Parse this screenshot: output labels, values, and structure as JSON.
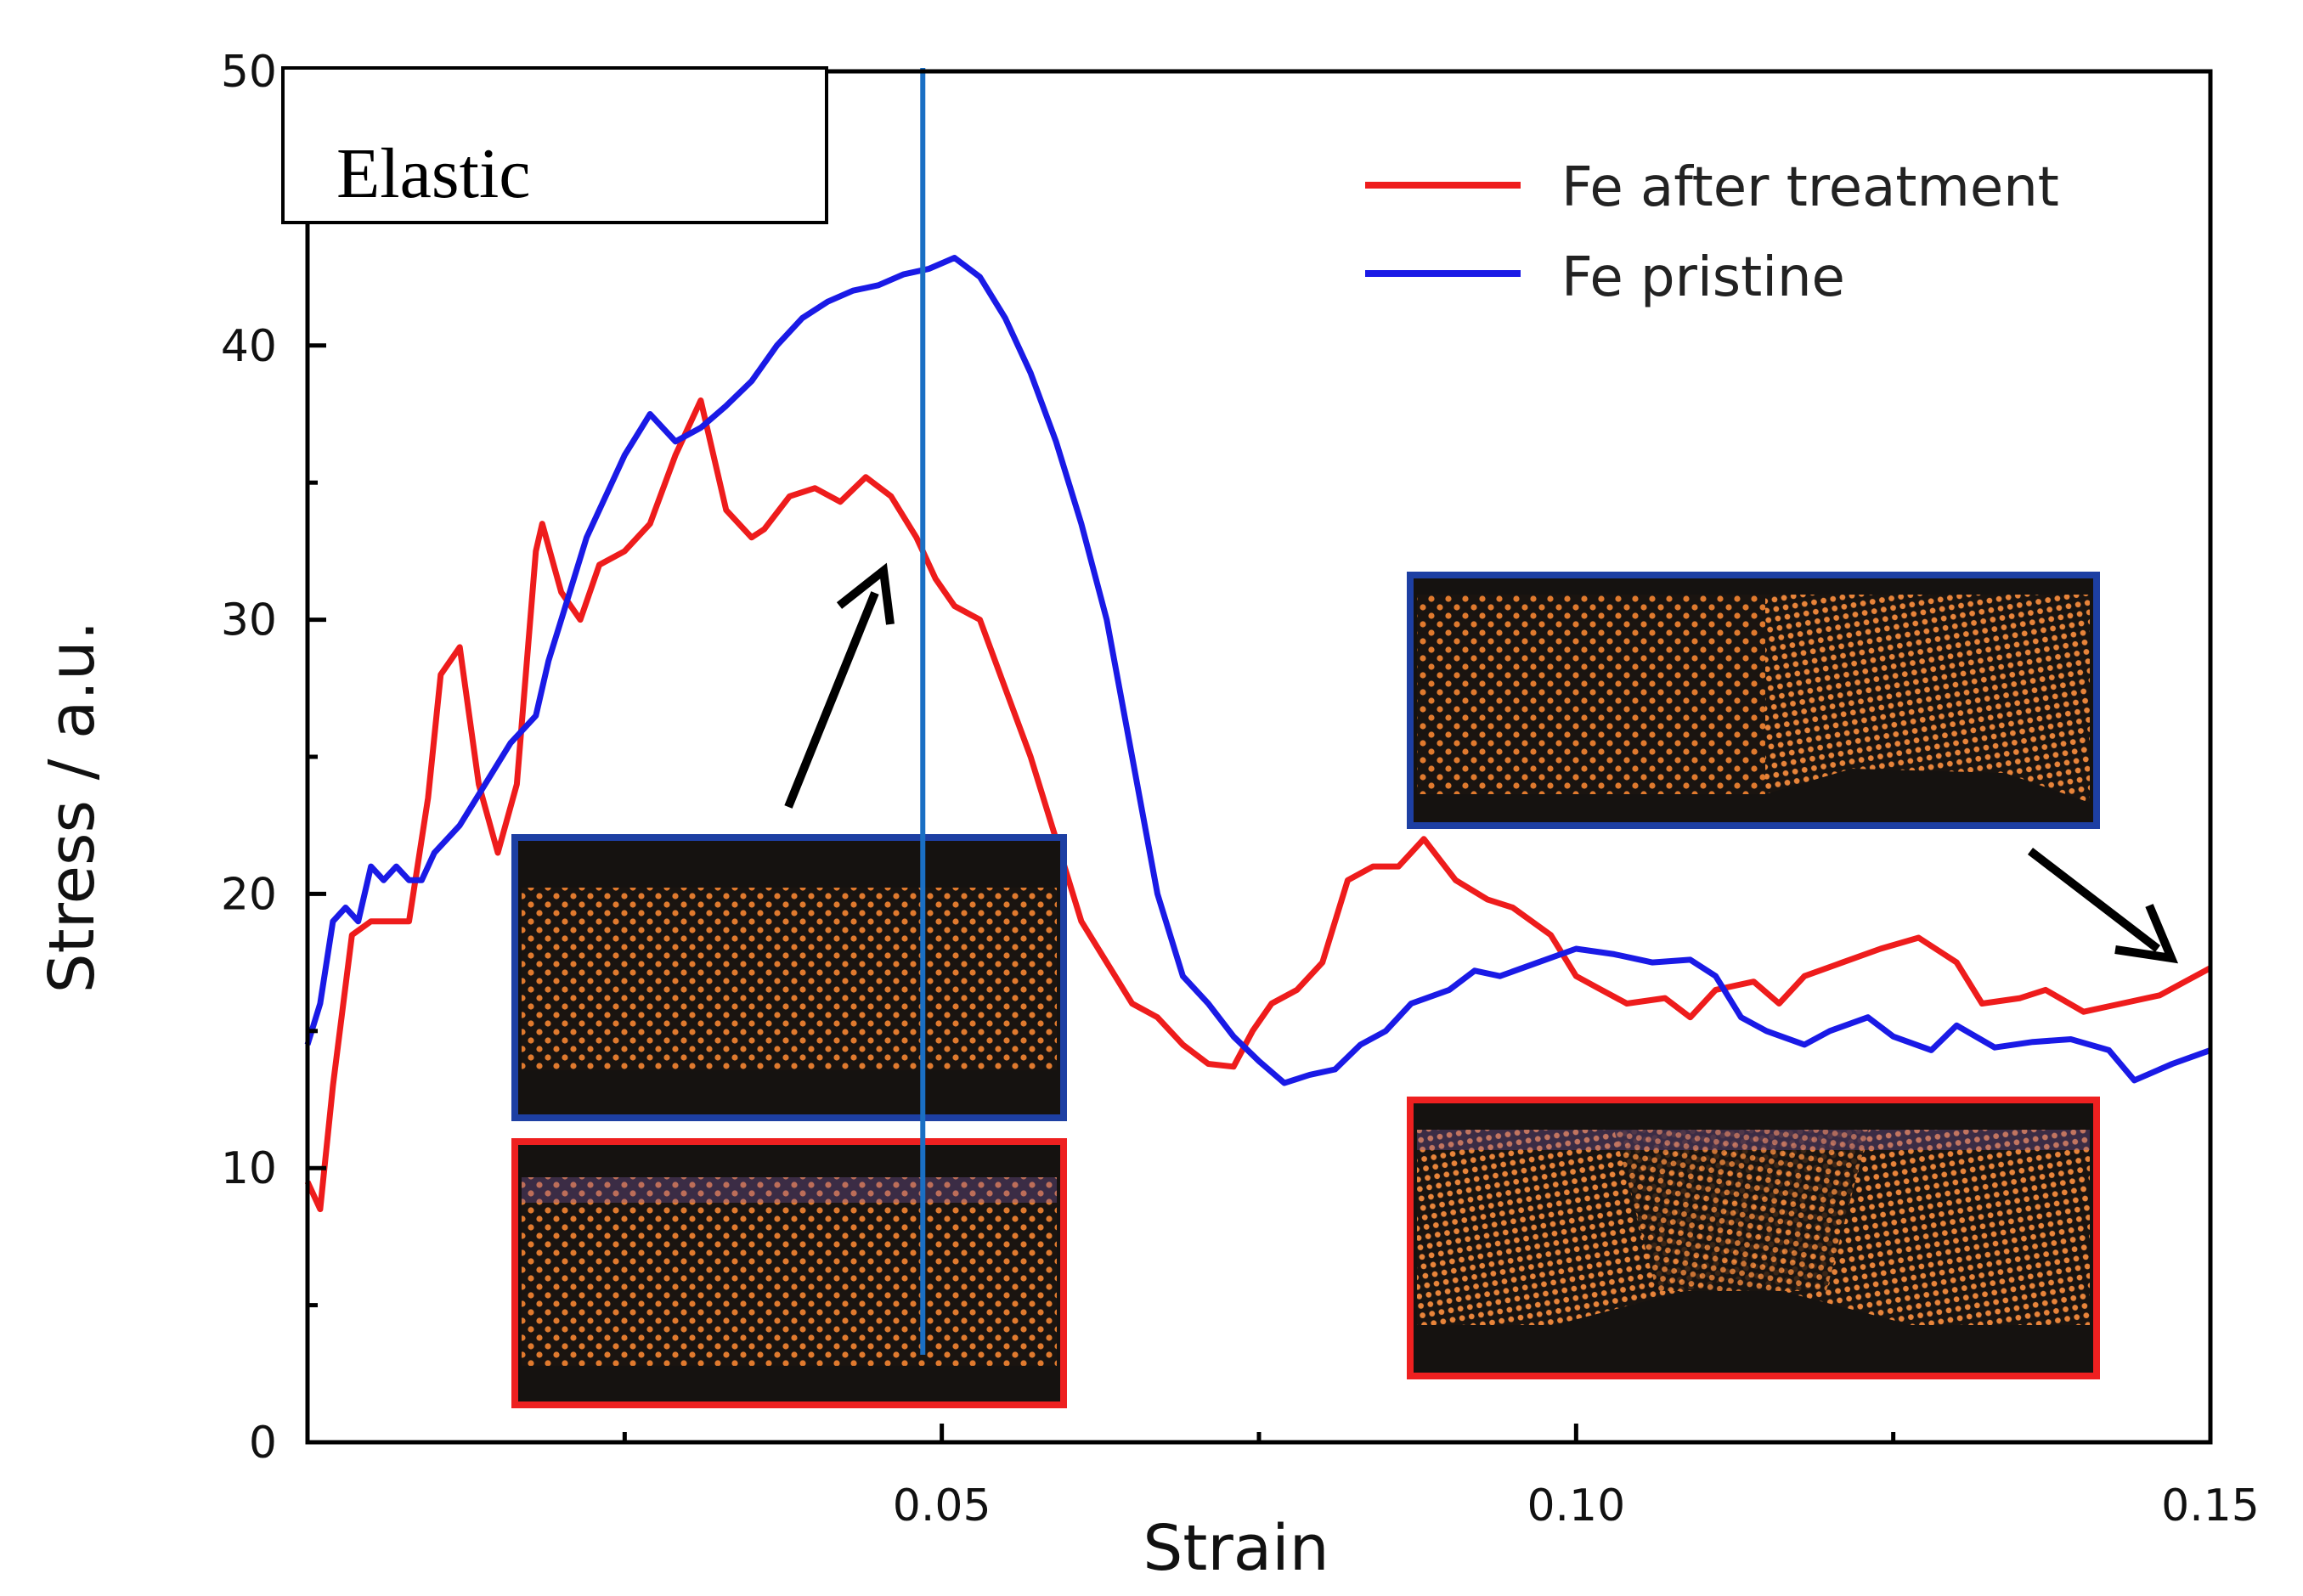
{
  "chart_data": {
    "type": "line",
    "title": "",
    "xlabel": "Strain",
    "ylabel": "Stress / a.u.",
    "xlim": [
      0.0,
      0.15
    ],
    "ylim": [
      0,
      50
    ],
    "x_ticks": [
      0.05,
      0.1,
      0.15
    ],
    "x_tick_labels": [
      "0.05",
      "0.10",
      "0.15"
    ],
    "y_ticks": [
      0,
      10,
      20,
      30,
      40,
      50
    ],
    "y_tick_labels": [
      "0",
      "10",
      "20",
      "30",
      "40",
      "50"
    ],
    "grid": false,
    "legend_position": "top-right",
    "annotation": "Elastic",
    "marker_line_x": 0.0485,
    "series": [
      {
        "name": "Fe after treatment",
        "color": "#ee1c1c",
        "x": [
          0.0,
          0.001,
          0.002,
          0.0035,
          0.005,
          0.008,
          0.0095,
          0.0105,
          0.012,
          0.0135,
          0.015,
          0.0165,
          0.018,
          0.0185,
          0.02,
          0.0215,
          0.023,
          0.025,
          0.027,
          0.029,
          0.031,
          0.033,
          0.035,
          0.036,
          0.038,
          0.04,
          0.042,
          0.044,
          0.046,
          0.048,
          0.0495,
          0.051,
          0.053,
          0.055,
          0.057,
          0.059,
          0.061,
          0.063,
          0.065,
          0.067,
          0.069,
          0.071,
          0.073,
          0.0745,
          0.076,
          0.078,
          0.08,
          0.082,
          0.084,
          0.086,
          0.088,
          0.0905,
          0.093,
          0.095,
          0.098,
          0.1,
          0.102,
          0.104,
          0.107,
          0.109,
          0.111,
          0.114,
          0.116,
          0.118,
          0.121,
          0.124,
          0.127,
          0.13,
          0.132,
          0.135,
          0.137,
          0.14,
          0.143,
          0.146,
          0.148,
          0.15
        ],
        "values": [
          9.5,
          8.5,
          13.0,
          18.5,
          19.0,
          19.0,
          23.5,
          28.0,
          29.0,
          24.0,
          21.5,
          24.0,
          32.5,
          33.5,
          31.0,
          30.0,
          32.0,
          32.5,
          33.5,
          36.0,
          38.0,
          34.0,
          33.0,
          33.3,
          34.5,
          34.8,
          34.3,
          35.2,
          34.5,
          33.0,
          31.5,
          30.5,
          30.0,
          27.5,
          25.0,
          22.0,
          19.0,
          17.5,
          16.0,
          15.5,
          14.5,
          13.8,
          13.7,
          15.0,
          16.0,
          16.5,
          17.5,
          20.5,
          21.0,
          21.0,
          22.0,
          20.5,
          19.8,
          19.5,
          18.5,
          17.0,
          16.5,
          16.0,
          16.2,
          15.5,
          16.5,
          16.8,
          16.0,
          17.0,
          17.5,
          18.0,
          18.4,
          17.5,
          16.0,
          16.2,
          16.5,
          15.7,
          16.0,
          16.3,
          16.8,
          17.3
        ]
      },
      {
        "name": "Fe pristine",
        "color": "#1a1ae6",
        "x": [
          0.0,
          0.001,
          0.002,
          0.003,
          0.004,
          0.005,
          0.006,
          0.007,
          0.008,
          0.009,
          0.01,
          0.012,
          0.014,
          0.016,
          0.017,
          0.018,
          0.019,
          0.02,
          0.022,
          0.024,
          0.025,
          0.027,
          0.029,
          0.031,
          0.033,
          0.035,
          0.037,
          0.039,
          0.041,
          0.043,
          0.045,
          0.047,
          0.049,
          0.051,
          0.053,
          0.055,
          0.057,
          0.059,
          0.061,
          0.063,
          0.065,
          0.067,
          0.069,
          0.071,
          0.073,
          0.075,
          0.077,
          0.079,
          0.081,
          0.083,
          0.085,
          0.087,
          0.09,
          0.092,
          0.094,
          0.097,
          0.1,
          0.103,
          0.106,
          0.109,
          0.111,
          0.113,
          0.115,
          0.118,
          0.12,
          0.123,
          0.125,
          0.128,
          0.13,
          0.133,
          0.136,
          0.139,
          0.142,
          0.144,
          0.147,
          0.15
        ],
        "values": [
          14.5,
          16.0,
          19.0,
          19.5,
          19.0,
          21.0,
          20.5,
          21.0,
          20.5,
          20.5,
          21.5,
          22.5,
          24.0,
          25.5,
          26.0,
          26.5,
          28.5,
          30.0,
          33.0,
          35.0,
          36.0,
          37.5,
          36.5,
          37.0,
          37.8,
          38.7,
          40.0,
          41.0,
          41.6,
          42.0,
          42.2,
          42.6,
          42.8,
          43.2,
          42.5,
          41.0,
          39.0,
          36.5,
          33.5,
          30.0,
          25.0,
          20.0,
          17.0,
          16.0,
          14.8,
          13.9,
          13.1,
          13.4,
          13.6,
          14.5,
          15.0,
          16.0,
          16.5,
          17.2,
          17.0,
          17.5,
          18.0,
          17.8,
          17.5,
          17.6,
          17.0,
          15.5,
          15.0,
          14.5,
          15.0,
          15.5,
          14.8,
          14.3,
          15.2,
          14.4,
          14.6,
          14.7,
          14.3,
          13.2,
          13.8,
          14.3
        ]
      }
    ]
  }
}
